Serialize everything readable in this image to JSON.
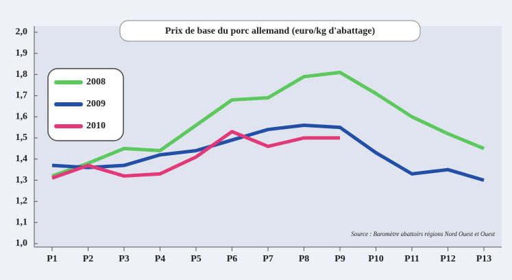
{
  "chart_data": {
    "type": "line",
    "title": "Prix de base du porc allemand (euro/kg d'abattage)",
    "annotation": "Source : Baromètre abattoirs régions Nord Ouest et Ouest",
    "categories": [
      "P1",
      "P2",
      "P3",
      "P4",
      "P5",
      "P6",
      "P7",
      "P8",
      "P9",
      "P10",
      "P11",
      "P12",
      "P13"
    ],
    "series": [
      {
        "name": "2008",
        "color": "#5cc85e",
        "values": [
          1.32,
          1.38,
          1.45,
          1.44,
          1.56,
          1.68,
          1.69,
          1.79,
          1.81,
          1.71,
          1.6,
          1.52,
          1.45
        ]
      },
      {
        "name": "2009",
        "color": "#2350a6",
        "values": [
          1.37,
          1.36,
          1.37,
          1.42,
          1.44,
          1.49,
          1.54,
          1.56,
          1.55,
          1.43,
          1.33,
          1.35,
          1.3
        ]
      },
      {
        "name": "2010",
        "color": "#e23a78",
        "values": [
          1.31,
          1.37,
          1.32,
          1.33,
          1.41,
          1.53,
          1.46,
          1.5,
          1.5,
          null,
          null,
          null,
          null
        ]
      }
    ],
    "ylim": [
      1.0,
      2.0
    ],
    "yticks": [
      {
        "value": 1.0,
        "label": "1,0"
      },
      {
        "value": 1.1,
        "label": "1,1"
      },
      {
        "value": 1.2,
        "label": "1,2"
      },
      {
        "value": 1.3,
        "label": "1,3"
      },
      {
        "value": 1.4,
        "label": "1,4"
      },
      {
        "value": 1.5,
        "label": "1,5"
      },
      {
        "value": 1.6,
        "label": "1,6"
      },
      {
        "value": 1.7,
        "label": "1,7"
      },
      {
        "value": 1.8,
        "label": "1,8"
      },
      {
        "value": 1.9,
        "label": "1,9"
      },
      {
        "value": 2.0,
        "label": "2,0"
      }
    ],
    "legend": "upper left"
  }
}
